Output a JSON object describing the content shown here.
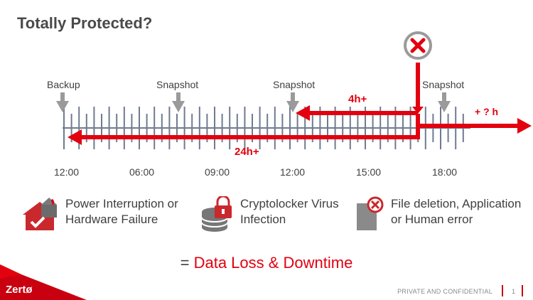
{
  "title": "Totally Protected?",
  "timeline": {
    "markers": [
      "Backup",
      "Snapshot",
      "Snapshot",
      "Snapshot"
    ],
    "times": [
      "12:00",
      "06:00",
      "09:00",
      "12:00",
      "15:00",
      "18:00"
    ],
    "arrows": {
      "short": "4h+",
      "long": "24h+",
      "future": "+ ? h"
    }
  },
  "causes": [
    {
      "icon": "house-fire-icon",
      "label": "Power Interruption or\nHardware Failure"
    },
    {
      "icon": "locked-database-icon",
      "label": "Cryptolocker Virus\nInfection"
    },
    {
      "icon": "deleted-file-icon",
      "label": "File deletion, Application\nor Human error"
    }
  ],
  "result": {
    "prefix": "= ",
    "highlight": "Data Loss & Downtime"
  },
  "footer": {
    "brand": "Zertø",
    "confidential": "PRIVATE AND CONFIDENTIAL",
    "page": "1"
  },
  "colors": {
    "accent": "#e3000f",
    "tick": "#6e7b8f",
    "marker": "#9a9a9a",
    "text": "#3f3f3f"
  }
}
